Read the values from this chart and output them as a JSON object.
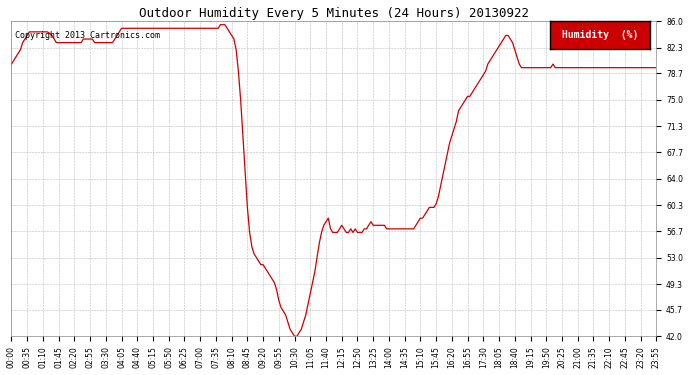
{
  "title": "Outdoor Humidity Every 5 Minutes (24 Hours) 20130922",
  "copyright": "Copyright 2013 Cartronics.com",
  "legend_label": "Humidity  (%)",
  "legend_bg": "#cc0000",
  "legend_text_color": "#ffffff",
  "line_color": "#cc0000",
  "bg_color": "#ffffff",
  "plot_bg_color": "#ffffff",
  "grid_color": "#bbbbbb",
  "title_color": "#000000",
  "yticks": [
    42.0,
    45.7,
    49.3,
    53.0,
    56.7,
    60.3,
    64.0,
    67.7,
    71.3,
    75.0,
    78.7,
    82.3,
    86.0
  ],
  "ylim": [
    42.0,
    86.0
  ],
  "humidity_data": [
    80.0,
    80.5,
    81.0,
    81.5,
    82.0,
    83.0,
    83.5,
    84.0,
    84.5,
    84.5,
    84.5,
    84.5,
    84.5,
    84.5,
    84.5,
    84.5,
    84.5,
    84.3,
    84.0,
    83.5,
    83.0,
    83.0,
    83.0,
    83.0,
    83.0,
    83.0,
    83.0,
    83.0,
    83.0,
    83.0,
    83.0,
    83.0,
    83.5,
    83.5,
    83.5,
    83.5,
    83.5,
    83.0,
    83.0,
    83.0,
    83.0,
    83.0,
    83.0,
    83.0,
    83.0,
    83.0,
    83.5,
    84.0,
    84.5,
    85.0,
    85.0,
    85.0,
    85.0,
    85.0,
    85.0,
    85.0,
    85.0,
    85.0,
    85.0,
    85.0,
    85.0,
    85.0,
    85.0,
    85.0,
    85.0,
    85.0,
    85.0,
    85.0,
    85.0,
    85.0,
    85.0,
    85.0,
    85.0,
    85.0,
    85.0,
    85.0,
    85.0,
    85.0,
    85.0,
    85.0,
    85.0,
    85.0,
    85.0,
    85.0,
    85.0,
    85.0,
    85.0,
    85.0,
    85.0,
    85.0,
    85.0,
    85.0,
    85.0,
    85.5,
    85.5,
    85.5,
    85.0,
    84.5,
    84.0,
    83.5,
    82.0,
    79.0,
    75.0,
    70.0,
    65.0,
    60.0,
    56.5,
    54.5,
    53.5,
    53.0,
    52.5,
    52.0,
    52.0,
    51.5,
    51.0,
    50.5,
    50.0,
    49.5,
    48.5,
    47.0,
    46.0,
    45.5,
    45.0,
    44.0,
    43.0,
    42.5,
    42.0,
    42.0,
    42.5,
    43.0,
    44.0,
    45.0,
    46.5,
    48.0,
    49.5,
    51.0,
    53.0,
    55.0,
    56.5,
    57.5,
    58.0,
    58.5,
    57.0,
    56.5,
    56.5,
    56.5,
    57.0,
    57.5,
    57.0,
    56.5,
    56.5,
    57.0,
    56.5,
    57.0,
    56.5,
    56.5,
    56.5,
    57.0,
    57.0,
    57.5,
    58.0,
    57.5,
    57.5,
    57.5,
    57.5,
    57.5,
    57.5,
    57.0,
    57.0,
    57.0,
    57.0,
    57.0,
    57.0,
    57.0,
    57.0,
    57.0,
    57.0,
    57.0,
    57.0,
    57.0,
    57.5,
    58.0,
    58.5,
    58.5,
    59.0,
    59.5,
    60.0,
    60.0,
    60.0,
    60.5,
    61.5,
    63.0,
    64.5,
    66.0,
    67.5,
    69.0,
    70.0,
    71.0,
    72.0,
    73.5,
    74.0,
    74.5,
    75.0,
    75.5,
    75.5,
    76.0,
    76.5,
    77.0,
    77.5,
    78.0,
    78.5,
    79.0,
    80.0,
    80.5,
    81.0,
    81.5,
    82.0,
    82.5,
    83.0,
    83.5,
    84.0,
    84.0,
    83.5,
    83.0,
    82.0,
    81.0,
    80.0,
    79.5,
    79.5,
    79.5,
    79.5,
    79.5,
    79.5,
    79.5,
    79.5,
    79.5,
    79.5,
    79.5,
    79.5,
    79.5,
    79.5,
    80.0,
    79.5,
    79.5,
    79.5,
    79.5,
    79.5,
    79.5,
    79.5,
    79.5,
    79.5,
    79.5,
    79.5,
    79.5,
    79.5,
    79.5,
    79.5,
    79.5,
    79.5,
    79.5,
    79.5,
    79.5,
    79.5,
    79.5,
    79.5,
    79.5,
    79.5,
    79.5,
    79.5,
    79.5,
    79.5,
    79.5,
    79.5,
    79.5,
    79.5,
    79.5,
    79.5,
    79.5,
    79.5,
    79.5,
    79.5,
    79.5,
    79.5,
    79.5,
    79.5,
    79.5,
    79.5,
    79.5
  ],
  "xtick_every": 7,
  "title_fontsize": 9,
  "tick_fontsize": 5.5,
  "copyright_fontsize": 6,
  "legend_fontsize": 7,
  "linewidth": 0.9,
  "figwidth": 6.9,
  "figheight": 3.75,
  "dpi": 100
}
